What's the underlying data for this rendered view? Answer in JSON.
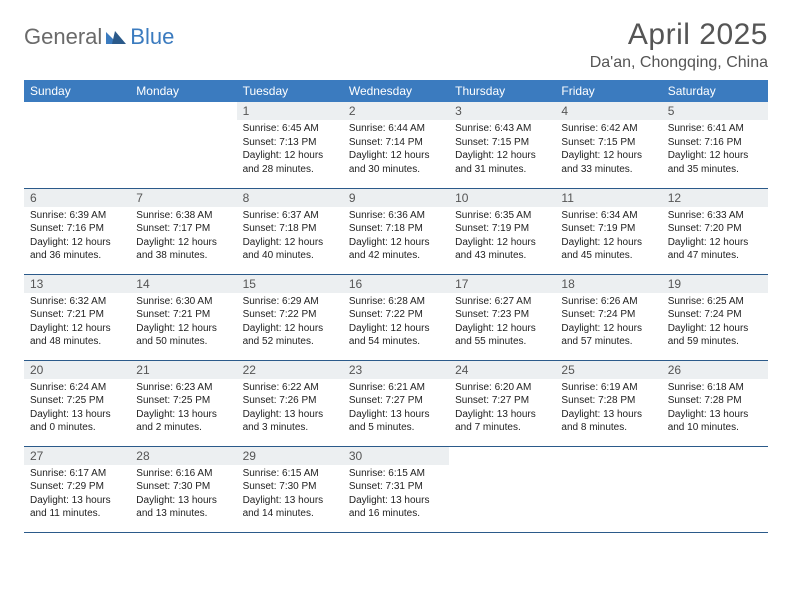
{
  "logo": {
    "text1": "General",
    "text2": "Blue"
  },
  "title": "April 2025",
  "location": "Da'an, Chongqing, China",
  "colors": {
    "header_bg": "#3b7bbf",
    "header_text": "#ffffff",
    "daynum_bg": "#eceff1",
    "border": "#2b5a8a",
    "title_color": "#555555",
    "body_text": "#222222"
  },
  "weekdays": [
    "Sunday",
    "Monday",
    "Tuesday",
    "Wednesday",
    "Thursday",
    "Friday",
    "Saturday"
  ],
  "weeks": [
    [
      null,
      null,
      {
        "n": "1",
        "sr": "6:45 AM",
        "ss": "7:13 PM",
        "dl": "12 hours and 28 minutes."
      },
      {
        "n": "2",
        "sr": "6:44 AM",
        "ss": "7:14 PM",
        "dl": "12 hours and 30 minutes."
      },
      {
        "n": "3",
        "sr": "6:43 AM",
        "ss": "7:15 PM",
        "dl": "12 hours and 31 minutes."
      },
      {
        "n": "4",
        "sr": "6:42 AM",
        "ss": "7:15 PM",
        "dl": "12 hours and 33 minutes."
      },
      {
        "n": "5",
        "sr": "6:41 AM",
        "ss": "7:16 PM",
        "dl": "12 hours and 35 minutes."
      }
    ],
    [
      {
        "n": "6",
        "sr": "6:39 AM",
        "ss": "7:16 PM",
        "dl": "12 hours and 36 minutes."
      },
      {
        "n": "7",
        "sr": "6:38 AM",
        "ss": "7:17 PM",
        "dl": "12 hours and 38 minutes."
      },
      {
        "n": "8",
        "sr": "6:37 AM",
        "ss": "7:18 PM",
        "dl": "12 hours and 40 minutes."
      },
      {
        "n": "9",
        "sr": "6:36 AM",
        "ss": "7:18 PM",
        "dl": "12 hours and 42 minutes."
      },
      {
        "n": "10",
        "sr": "6:35 AM",
        "ss": "7:19 PM",
        "dl": "12 hours and 43 minutes."
      },
      {
        "n": "11",
        "sr": "6:34 AM",
        "ss": "7:19 PM",
        "dl": "12 hours and 45 minutes."
      },
      {
        "n": "12",
        "sr": "6:33 AM",
        "ss": "7:20 PM",
        "dl": "12 hours and 47 minutes."
      }
    ],
    [
      {
        "n": "13",
        "sr": "6:32 AM",
        "ss": "7:21 PM",
        "dl": "12 hours and 48 minutes."
      },
      {
        "n": "14",
        "sr": "6:30 AM",
        "ss": "7:21 PM",
        "dl": "12 hours and 50 minutes."
      },
      {
        "n": "15",
        "sr": "6:29 AM",
        "ss": "7:22 PM",
        "dl": "12 hours and 52 minutes."
      },
      {
        "n": "16",
        "sr": "6:28 AM",
        "ss": "7:22 PM",
        "dl": "12 hours and 54 minutes."
      },
      {
        "n": "17",
        "sr": "6:27 AM",
        "ss": "7:23 PM",
        "dl": "12 hours and 55 minutes."
      },
      {
        "n": "18",
        "sr": "6:26 AM",
        "ss": "7:24 PM",
        "dl": "12 hours and 57 minutes."
      },
      {
        "n": "19",
        "sr": "6:25 AM",
        "ss": "7:24 PM",
        "dl": "12 hours and 59 minutes."
      }
    ],
    [
      {
        "n": "20",
        "sr": "6:24 AM",
        "ss": "7:25 PM",
        "dl": "13 hours and 0 minutes."
      },
      {
        "n": "21",
        "sr": "6:23 AM",
        "ss": "7:25 PM",
        "dl": "13 hours and 2 minutes."
      },
      {
        "n": "22",
        "sr": "6:22 AM",
        "ss": "7:26 PM",
        "dl": "13 hours and 3 minutes."
      },
      {
        "n": "23",
        "sr": "6:21 AM",
        "ss": "7:27 PM",
        "dl": "13 hours and 5 minutes."
      },
      {
        "n": "24",
        "sr": "6:20 AM",
        "ss": "7:27 PM",
        "dl": "13 hours and 7 minutes."
      },
      {
        "n": "25",
        "sr": "6:19 AM",
        "ss": "7:28 PM",
        "dl": "13 hours and 8 minutes."
      },
      {
        "n": "26",
        "sr": "6:18 AM",
        "ss": "7:28 PM",
        "dl": "13 hours and 10 minutes."
      }
    ],
    [
      {
        "n": "27",
        "sr": "6:17 AM",
        "ss": "7:29 PM",
        "dl": "13 hours and 11 minutes."
      },
      {
        "n": "28",
        "sr": "6:16 AM",
        "ss": "7:30 PM",
        "dl": "13 hours and 13 minutes."
      },
      {
        "n": "29",
        "sr": "6:15 AM",
        "ss": "7:30 PM",
        "dl": "13 hours and 14 minutes."
      },
      {
        "n": "30",
        "sr": "6:15 AM",
        "ss": "7:31 PM",
        "dl": "13 hours and 16 minutes."
      },
      null,
      null,
      null
    ]
  ],
  "labels": {
    "sunrise": "Sunrise:",
    "sunset": "Sunset:",
    "daylight": "Daylight:"
  }
}
